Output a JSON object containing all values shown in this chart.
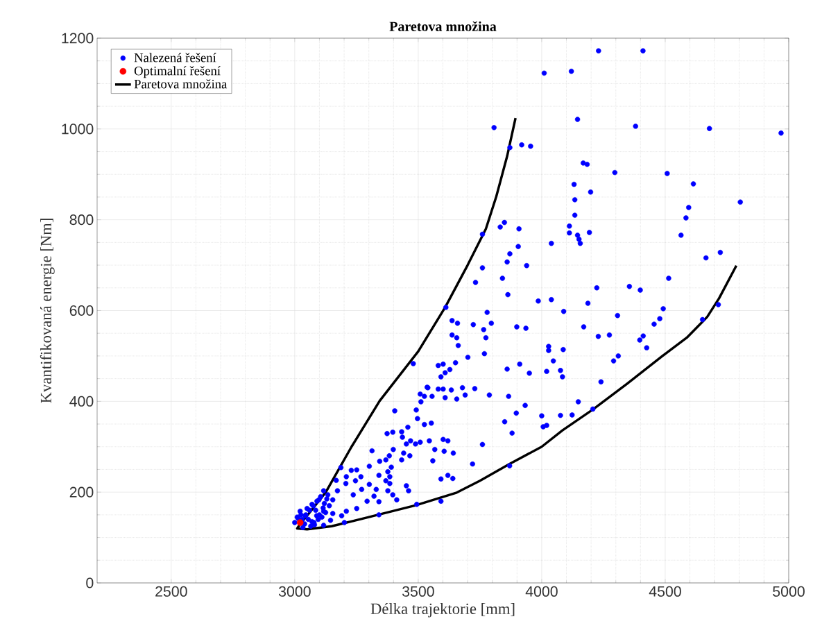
{
  "chart_data": {
    "type": "scatter",
    "title": "Paretova množina",
    "xlabel": "Délka trajektorie [mm]",
    "ylabel": "Kvantifikovaná energie [Nm]",
    "xlim": [
      2200,
      5000
    ],
    "xticks": [
      2500,
      3000,
      3500,
      4000,
      4500,
      5000
    ],
    "ylim": [
      0,
      1200
    ],
    "yticks": [
      0,
      200,
      400,
      600,
      800,
      1000,
      1200
    ],
    "grid": true,
    "legend": "top left",
    "marker": "circle",
    "series": [
      {
        "name": "Nalezená řešení",
        "color": "#0000ff",
        "x": [
          4230,
          4410,
          4010,
          4120,
          4145,
          3807,
          4380,
          4679,
          4969,
          3871,
          3919,
          3955,
          4168,
          4184,
          4296,
          4508,
          4614,
          4131,
          4198,
          4134,
          4804,
          4134,
          4595,
          4584,
          3849,
          3832,
          3908,
          4112,
          4112,
          4145,
          4151,
          4156,
          4193,
          4039,
          3905,
          3939,
          4564,
          4665,
          4723,
          4514,
          4223,
          4355,
          4399,
          3986,
          4039,
          4187,
          4089,
          4492,
          4307,
          4478,
          4455,
          3899,
          3936,
          4170,
          4229,
          4274,
          4411,
          4397,
          4425,
          4028,
          4028,
          4087,
          4047,
          4310,
          4291,
          3911,
          3950,
          4020,
          4076,
          4084,
          4240,
          4148,
          3933,
          3897,
          4000,
          4076,
          4123,
          4207,
          4715,
          4651,
          4020,
          4006,
          3760,
          3871,
          3860,
          3760,
          3841,
          3732,
          3863,
          3612,
          3779,
          3637,
          3659,
          3723,
          3796,
          3765,
          3637,
          3656,
          3774,
          3662,
          3768,
          3701,
          3480,
          3651,
          3581,
          3601,
          3628,
          3609,
          3592,
          3860,
          3536,
          3581,
          3601,
          3634,
          3679,
          3729,
          3508,
          3556,
          3609,
          3656,
          3690,
          3788,
          3866,
          3405,
          3492,
          3511,
          3525,
          3539,
          3497,
          3525,
          3553,
          3374,
          3397,
          3433,
          3458,
          3436,
          3469,
          3489,
          3452,
          3508,
          3545,
          3601,
          3620,
          3567,
          3642,
          3559,
          3313,
          3399,
          3441,
          3466,
          3383,
          3369,
          3344,
          3433,
          3391,
          3302,
          3187,
          3229,
          3251,
          3377,
          3341,
          3385,
          3168,
          3209,
          3268,
          3207,
          3246,
          3302,
          3369,
          3385,
          3271,
          3330,
          3377,
          3452,
          3461,
          3620,
          3592,
          3397,
          3413,
          3321,
          3341,
          3494,
          3592,
          3237,
          3293,
          3251,
          3209,
          3154,
          3173,
          3117,
          3134,
          3098,
          3070,
          3050,
          3117,
          3089,
          3154,
          3190,
          3042,
          3022,
          3014,
          3000,
          3145,
          3201,
          3033,
          3341,
          3078,
          3117,
          3760,
          3870,
          3720,
          3640,
          3605,
          3880,
          3850,
          3030,
          3045,
          3060,
          3075,
          3090,
          3105,
          3120,
          3040,
          3055,
          3070,
          3085,
          3100,
          3115,
          3130,
          3065,
          3080,
          3095,
          3110,
          3125,
          3140,
          3010,
          3025
        ],
        "values": [
          1172,
          1172,
          1123,
          1127,
          1021,
          1003,
          1006,
          1001,
          991,
          959,
          965,
          962,
          925,
          922,
          904,
          902,
          879,
          878,
          861,
          844,
          839,
          810,
          827,
          804,
          794,
          784,
          780,
          786,
          771,
          766,
          757,
          748,
          772,
          748,
          741,
          699,
          766,
          716,
          728,
          671,
          650,
          653,
          645,
          621,
          624,
          616,
          598,
          604,
          589,
          582,
          570,
          564,
          561,
          564,
          543,
          546,
          544,
          535,
          518,
          521,
          512,
          514,
          489,
          500,
          489,
          482,
          462,
          466,
          468,
          454,
          443,
          399,
          391,
          374,
          368,
          369,
          370,
          383,
          613,
          580,
          347,
          344,
          768,
          725,
          707,
          694,
          671,
          662,
          635,
          607,
          596,
          578,
          572,
          569,
          572,
          558,
          546,
          540,
          540,
          523,
          505,
          497,
          483,
          485,
          479,
          482,
          470,
          463,
          454,
          471,
          431,
          427,
          427,
          425,
          430,
          428,
          416,
          411,
          408,
          405,
          414,
          414,
          411,
          379,
          381,
          399,
          411,
          430,
          362,
          349,
          352,
          329,
          332,
          333,
          343,
          321,
          313,
          306,
          306,
          310,
          313,
          316,
          313,
          294,
          286,
          269,
          291,
          294,
          286,
          280,
          280,
          271,
          268,
          271,
          255,
          257,
          254,
          248,
          249,
          245,
          237,
          234,
          226,
          234,
          234,
          219,
          225,
          217,
          225,
          219,
          206,
          206,
          203,
          214,
          203,
          237,
          229,
          194,
          183,
          191,
          179,
          173,
          180,
          194,
          180,
          164,
          158,
          183,
          203,
          203,
          194,
          183,
          173,
          164,
          158,
          148,
          153,
          148,
          148,
          158,
          142,
          133,
          138,
          133,
          122,
          150,
          133,
          127,
          305,
          258,
          262,
          230,
          290,
          330,
          355,
          140,
          150,
          160,
          170,
          180,
          190,
          175,
          130,
          140,
          135,
          160,
          150,
          165,
          185,
          125,
          128,
          140,
          145,
          155,
          170,
          145,
          150
        ]
      },
      {
        "name": "Optimalní řešení",
        "color": "#ff0000",
        "x": [
          3022
        ],
        "values": [
          133
        ]
      },
      {
        "name": "Paretova množina",
        "type": "line",
        "color": "#000000",
        "marker": "none",
        "line_style": "solid",
        "x": [
          3894,
          3860,
          3816,
          3774,
          3700,
          3609,
          3500,
          3344,
          3230,
          3126,
          3060,
          3020,
          3010,
          3050,
          3150,
          3300,
          3490,
          3656,
          3750,
          3870,
          4000,
          4084,
          4207,
          4346,
          4489,
          4587,
          4670,
          4718,
          4788
        ],
        "values": [
          1024,
          940,
          851,
          780,
          700,
          607,
          510,
          401,
          300,
          200,
          155,
          128,
          120,
          118,
          125,
          145,
          171,
          199,
          225,
          262,
          300,
          336,
          382,
          439,
          500,
          540,
          586,
          627,
          699
        ]
      }
    ]
  }
}
